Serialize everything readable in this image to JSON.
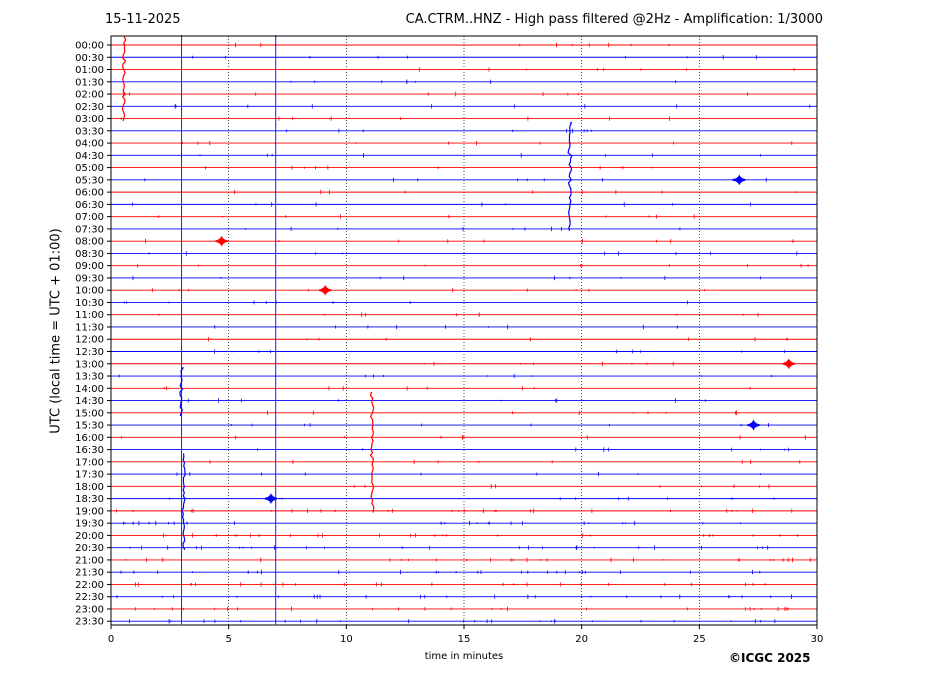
{
  "header": {
    "date": "15-11-2025",
    "title": "CA.CTRM..HNZ - High pass filtered @2Hz - Amplification: 1/3000"
  },
  "footer": {
    "copyright": "©ICGC 2025"
  },
  "colors": {
    "red_trace": "#ff0000",
    "blue_trace": "#0000ff",
    "grid": "#000000",
    "background": "#ffffff"
  },
  "chart_data": {
    "type": "line",
    "chart_kind": "helicorder",
    "xlabel": "time in minutes",
    "ylabel": "UTC (local time = UTC + 01:00)",
    "xlim": [
      0,
      30
    ],
    "x_ticks": [
      0,
      5,
      10,
      15,
      20,
      25,
      30
    ],
    "y_ticks": [
      "00:00",
      "00:30",
      "01:00",
      "01:30",
      "02:00",
      "02:30",
      "03:00",
      "03:30",
      "04:00",
      "04:30",
      "05:00",
      "05:30",
      "06:00",
      "06:30",
      "07:00",
      "07:30",
      "08:00",
      "08:30",
      "09:00",
      "09:30",
      "10:00",
      "10:30",
      "11:00",
      "11:30",
      "12:00",
      "12:30",
      "13:00",
      "13:30",
      "14:00",
      "14:30",
      "15:00",
      "15:30",
      "16:00",
      "16:30",
      "17:00",
      "17:30",
      "18:00",
      "18:30",
      "19:00",
      "19:30",
      "20:00",
      "20:30",
      "21:00",
      "21:30",
      "22:00",
      "22:30",
      "23:00",
      "23:30"
    ],
    "line_colors": [
      "red",
      "blue"
    ],
    "grid": "vertical dotted at 5, 10, 15, 20, 25",
    "persistent_lines": [
      {
        "x": 3.0,
        "color": "blue",
        "from": "00:00",
        "to": "23:30"
      },
      {
        "x": 7.0,
        "color": "blue",
        "from": "00:00",
        "to": "23:30"
      }
    ],
    "events": [
      {
        "x": 0.55,
        "from": "00:00",
        "to": "03:00",
        "color": "red"
      },
      {
        "x": 19.5,
        "from": "03:30",
        "to": "07:30",
        "color": "blue"
      },
      {
        "x": 26.7,
        "row": "05:30",
        "color": "blue"
      },
      {
        "x": 4.7,
        "row": "08:00",
        "color": "red"
      },
      {
        "x": 9.1,
        "row": "10:00",
        "color": "red"
      },
      {
        "x": 28.8,
        "row": "13:00",
        "color": "red"
      },
      {
        "x": 3.0,
        "from": "13:30",
        "to": "15:00",
        "color": "blue"
      },
      {
        "x": 27.3,
        "row": "15:30",
        "color": "blue"
      },
      {
        "x": 11.1,
        "from": "14:30",
        "to": "19:00",
        "color": "red"
      },
      {
        "x": 3.1,
        "from": "17:00",
        "to": "20:30",
        "color": "blue"
      },
      {
        "x": 6.8,
        "row": "18:30",
        "color": "blue"
      }
    ]
  }
}
